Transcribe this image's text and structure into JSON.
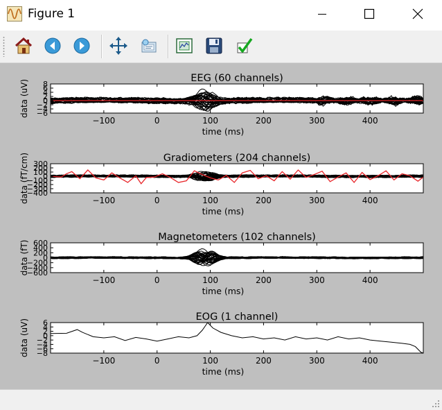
{
  "window": {
    "title": "Figure 1",
    "icon": "matplotlib-figure-icon",
    "controls": [
      "minimize-icon",
      "maximize-icon",
      "close-icon"
    ]
  },
  "toolbar": {
    "buttons": [
      {
        "name": "home",
        "icon": "home-icon"
      },
      {
        "name": "back",
        "icon": "back-arrow-icon"
      },
      {
        "name": "forward",
        "icon": "forward-arrow-icon"
      },
      {
        "name": "pan",
        "icon": "pan-arrows-icon"
      },
      {
        "name": "zoom",
        "icon": "zoom-rect-icon"
      },
      {
        "name": "subplots",
        "icon": "subplots-icon"
      },
      {
        "name": "save",
        "icon": "save-disk-icon"
      },
      {
        "name": "edit",
        "icon": "checkmark-icon"
      }
    ]
  },
  "colors": {
    "figure_bg": "#bfbfbf",
    "axes_bg": "#ffffff",
    "trace": "#000000",
    "highlight": "#e8262a"
  },
  "chart_data": [
    {
      "type": "line",
      "title": "EEG (60 channels)",
      "xlabel": "time (ms)",
      "ylabel": "data (uV)",
      "xlim": [
        -200,
        500
      ],
      "ylim": [
        -6,
        8
      ],
      "xticks": [
        "−100",
        "0",
        "100",
        "200",
        "300",
        "400"
      ],
      "xtick_values": [
        -100,
        0,
        100,
        200,
        300,
        400
      ],
      "yticks": [
        "8",
        "6",
        "4",
        "2",
        "0",
        "−2",
        "−4",
        "−6"
      ],
      "ytick_values": [
        8,
        6,
        4,
        2,
        0,
        -2,
        -4,
        -6
      ],
      "n_channels": 60,
      "highlight_series": {
        "color": "#e8262a",
        "x": [
          -200,
          500
        ],
        "y": [
          0,
          0
        ]
      }
    },
    {
      "type": "line",
      "title": "Gradiometers (204 channels)",
      "xlabel": "time (ms)",
      "ylabel": "data (fT/cm)",
      "xlim": [
        -200,
        500
      ],
      "ylim": [
        -400,
        300
      ],
      "xticks": [
        "−100",
        "0",
        "100",
        "200",
        "300",
        "400"
      ],
      "xtick_values": [
        -100,
        0,
        100,
        200,
        300,
        400
      ],
      "yticks": [
        "300",
        "200",
        "100",
        "0",
        "−100",
        "−200",
        "−300",
        "−400"
      ],
      "ytick_values": [
        300,
        200,
        100,
        0,
        -100,
        -200,
        -300,
        -400
      ],
      "n_channels": 204,
      "highlight_series": {
        "color": "#e8262a",
        "x": [
          -200,
          -180,
          -170,
          -160,
          -145,
          -130,
          -115,
          -100,
          -85,
          -70,
          -55,
          -40,
          -30,
          -20,
          -5,
          10,
          25,
          40,
          55,
          70,
          85,
          100,
          115,
          130,
          145,
          160,
          175,
          190,
          205,
          220,
          235,
          250,
          265,
          280,
          295,
          310,
          325,
          340,
          355,
          370,
          385,
          400,
          415,
          430,
          445,
          460,
          475,
          490,
          500
        ],
        "y": [
          0,
          -20,
          60,
          110,
          -60,
          150,
          -40,
          -90,
          80,
          -40,
          -150,
          10,
          -180,
          -30,
          -20,
          60,
          -30,
          -150,
          -110,
          130,
          40,
          -40,
          -90,
          20,
          -150,
          80,
          140,
          -60,
          10,
          -110,
          110,
          -70,
          150,
          -30,
          40,
          120,
          -130,
          -20,
          80,
          -150,
          90,
          -80,
          10,
          130,
          -90,
          60,
          10,
          -120,
          -20
        ]
      }
    },
    {
      "type": "line",
      "title": "Magnetometers (102 channels)",
      "xlabel": "time (ms)",
      "ylabel": "data (fT)",
      "xlim": [
        -200,
        500
      ],
      "ylim": [
        -600,
        600
      ],
      "xticks": [
        "−100",
        "0",
        "100",
        "200",
        "300",
        "400"
      ],
      "xtick_values": [
        -100,
        0,
        100,
        200,
        300,
        400
      ],
      "yticks": [
        "600",
        "400",
        "200",
        "0",
        "−200",
        "−400",
        "−600"
      ],
      "ytick_values": [
        600,
        400,
        200,
        0,
        -200,
        -400,
        -600
      ],
      "n_channels": 102
    },
    {
      "type": "line",
      "title": "EOG (1 channel)",
      "xlabel": "time (ms)",
      "ylabel": "data (uV)",
      "xlim": [
        -200,
        500
      ],
      "ylim": [
        -8,
        6
      ],
      "xticks": [
        "−100",
        "0",
        "100",
        "200",
        "300",
        "400"
      ],
      "xtick_values": [
        -100,
        0,
        100,
        200,
        300,
        400
      ],
      "yticks": [
        "6",
        "4",
        "2",
        "0",
        "−2",
        "−4",
        "−6",
        "−8"
      ],
      "ytick_values": [
        6,
        4,
        2,
        0,
        -2,
        -4,
        -6,
        -8
      ],
      "n_channels": 1,
      "series": [
        {
          "x": [
            -200,
            -170,
            -150,
            -140,
            -120,
            -100,
            -80,
            -60,
            -40,
            -20,
            0,
            20,
            40,
            60,
            75,
            85,
            95,
            105,
            120,
            140,
            160,
            180,
            200,
            220,
            240,
            260,
            280,
            300,
            320,
            340,
            360,
            380,
            400,
            420,
            440,
            460,
            475,
            485,
            495,
            500
          ],
          "y": [
            1,
            1.1,
            2.8,
            1.5,
            -0.5,
            -1,
            -0.5,
            -2.2,
            -0.8,
            -1.5,
            -2.5,
            -1.5,
            -0.5,
            -1,
            0,
            2.5,
            6,
            3.5,
            1.5,
            0,
            -1,
            -0.5,
            -1.5,
            -1,
            -2,
            -0.5,
            -1.5,
            -1,
            -2,
            -0.5,
            -1.5,
            -1,
            -2,
            -2.5,
            -3,
            -3.5,
            -4,
            -5,
            -7.5,
            -8
          ]
        }
      ]
    }
  ]
}
